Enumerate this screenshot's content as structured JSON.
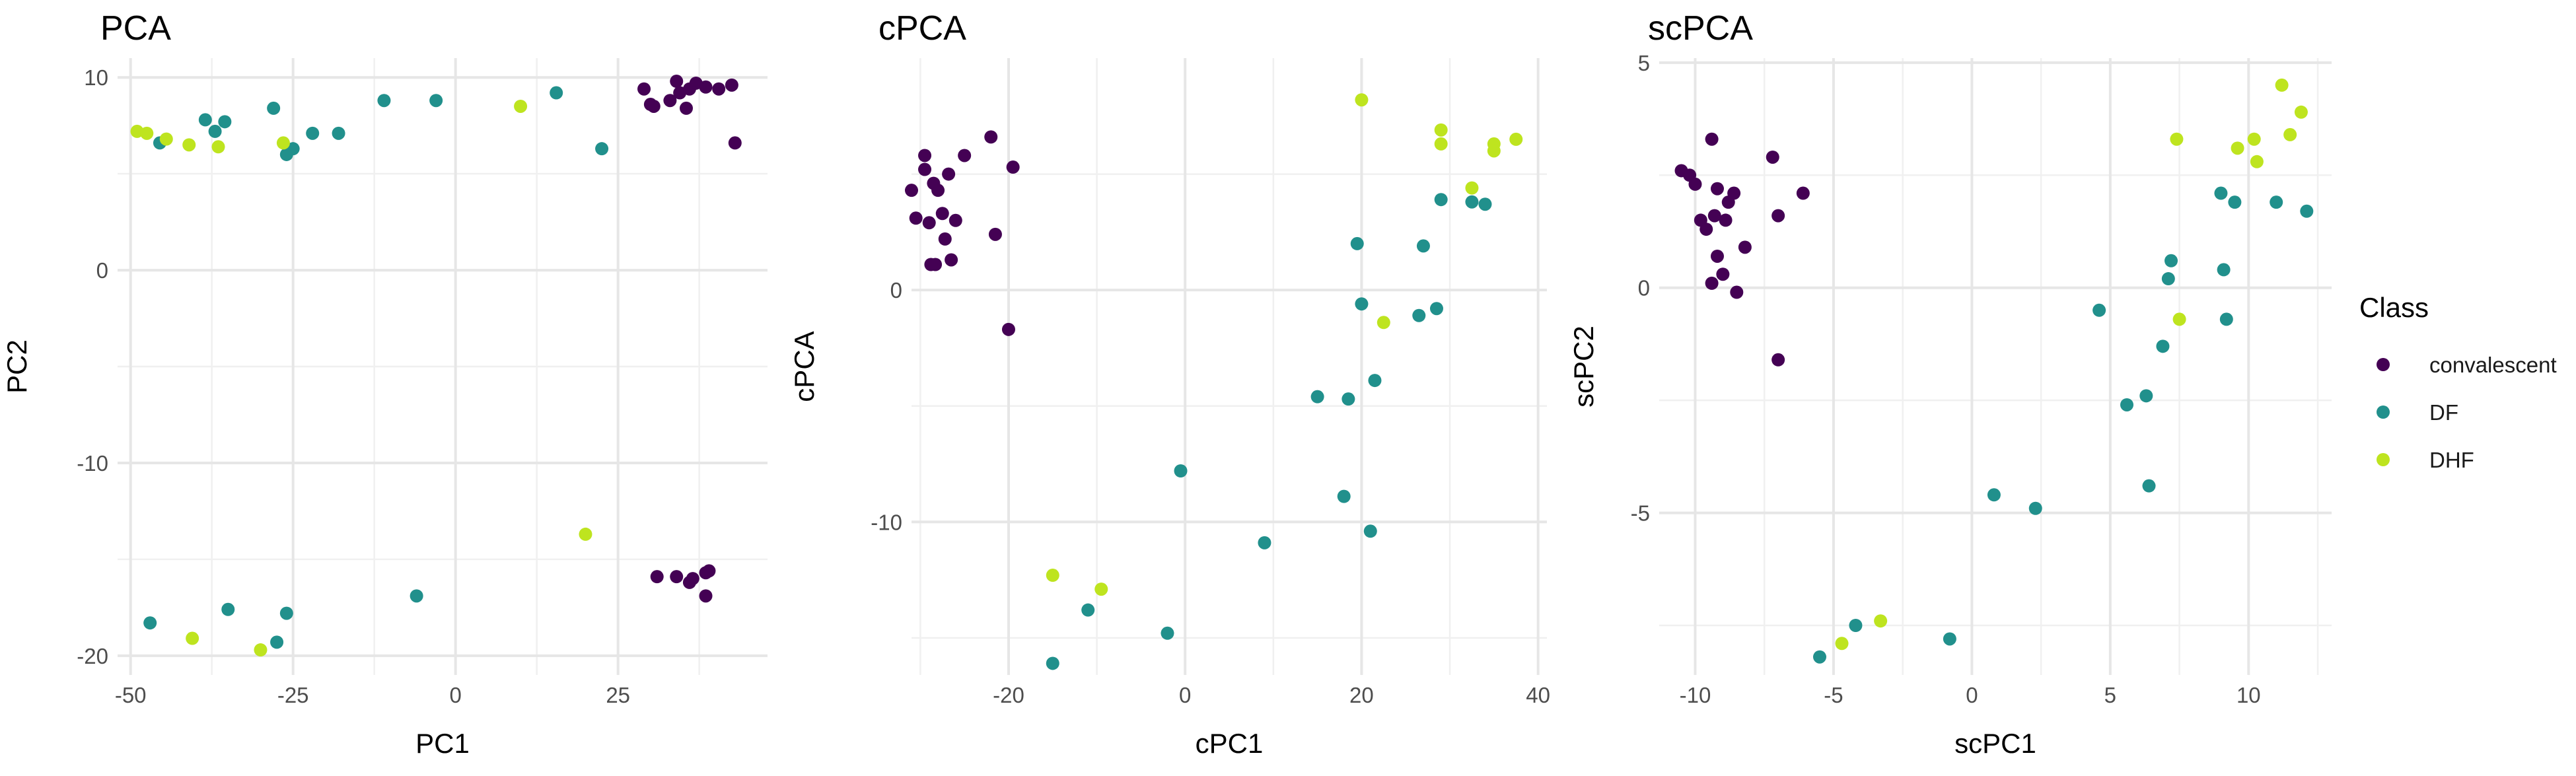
{
  "chart_data": [
    {
      "type": "scatter",
      "title": "PCA",
      "xlabel": "PC1",
      "ylabel": "PC2",
      "xlim": [
        -52,
        48
      ],
      "ylim": [
        -21,
        11
      ],
      "xticks": [
        -50,
        -25,
        0,
        25
      ],
      "yticks": [
        -20,
        -10,
        0,
        10
      ],
      "grid": true,
      "series": [
        {
          "name": "convalescent",
          "color": "#440154",
          "points": [
            [
              29,
              9.4
            ],
            [
              30,
              8.6
            ],
            [
              30.5,
              8.5
            ],
            [
              33,
              8.8
            ],
            [
              34,
              9.8
            ],
            [
              34.5,
              9.2
            ],
            [
              35.5,
              8.4
            ],
            [
              36,
              9.4
            ],
            [
              37,
              9.7
            ],
            [
              38.5,
              9.5
            ],
            [
              40.5,
              9.4
            ],
            [
              42.5,
              9.6
            ],
            [
              43,
              6.6
            ],
            [
              31,
              -15.9
            ],
            [
              34,
              -15.9
            ],
            [
              36,
              -16.2
            ],
            [
              36.5,
              -16
            ],
            [
              38.5,
              -15.7
            ],
            [
              39,
              -15.6
            ],
            [
              38.5,
              -16.9
            ]
          ]
        },
        {
          "name": "DF",
          "color": "#21908C",
          "points": [
            [
              -45.5,
              6.6
            ],
            [
              -38.5,
              7.8
            ],
            [
              -37,
              7.2
            ],
            [
              -35.5,
              7.7
            ],
            [
              -28,
              8.4
            ],
            [
              -26,
              6.0
            ],
            [
              -25,
              6.3
            ],
            [
              -22,
              7.1
            ],
            [
              -18,
              7.1
            ],
            [
              -11,
              8.8
            ],
            [
              -3,
              8.8
            ],
            [
              15.5,
              9.2
            ],
            [
              22.5,
              6.3
            ],
            [
              -47,
              -18.3
            ],
            [
              -35,
              -17.6
            ],
            [
              -27.5,
              -19.3
            ],
            [
              -26,
              -17.8
            ],
            [
              -6,
              -16.9
            ]
          ]
        },
        {
          "name": "DHF",
          "color": "#BEE41F",
          "points": [
            [
              -49,
              7.2
            ],
            [
              -47.5,
              7.1
            ],
            [
              -44.5,
              6.8
            ],
            [
              -41,
              6.5
            ],
            [
              -36.5,
              6.4
            ],
            [
              -26.5,
              6.6
            ],
            [
              10,
              8.5
            ],
            [
              20,
              -13.7
            ],
            [
              -40.5,
              -19.1
            ],
            [
              -30,
              -19.7
            ]
          ]
        }
      ]
    },
    {
      "type": "scatter",
      "title": "cPCA",
      "xlabel": "cPC1",
      "ylabel": "cPCA",
      "xlim": [
        -31,
        41
      ],
      "ylim": [
        -16.6,
        10
      ],
      "xticks": [
        -20,
        0,
        20,
        40
      ],
      "yticks": [
        -10,
        0
      ],
      "grid": true,
      "series": [
        {
          "name": "convalescent",
          "color": "#440154",
          "points": [
            [
              -31,
              4.3
            ],
            [
              -30.5,
              3.1
            ],
            [
              -29.5,
              5.8
            ],
            [
              -29.5,
              5.2
            ],
            [
              -29,
              2.9
            ],
            [
              -28.8,
              1.1
            ],
            [
              -28.5,
              4.6
            ],
            [
              -28.3,
              1.1
            ],
            [
              -28,
              4.3
            ],
            [
              -27.5,
              3.3
            ],
            [
              -27.2,
              2.2
            ],
            [
              -26.8,
              5.0
            ],
            [
              -26.5,
              1.3
            ],
            [
              -26,
              3.0
            ],
            [
              -25,
              5.8
            ],
            [
              -22,
              6.6
            ],
            [
              -21.5,
              2.4
            ],
            [
              -19.5,
              5.3
            ],
            [
              -20,
              -1.7
            ]
          ]
        },
        {
          "name": "DF",
          "color": "#21908C",
          "points": [
            [
              -15,
              -16.1
            ],
            [
              -11,
              -13.8
            ],
            [
              -2,
              -14.8
            ],
            [
              -0.5,
              -7.8
            ],
            [
              9,
              -10.9
            ],
            [
              15,
              -4.6
            ],
            [
              18,
              -8.9
            ],
            [
              18.5,
              -4.7
            ],
            [
              19.5,
              2.0
            ],
            [
              20,
              -0.6
            ],
            [
              21,
              -10.4
            ],
            [
              21.5,
              -3.9
            ],
            [
              26.5,
              -1.1
            ],
            [
              27,
              1.9
            ],
            [
              28.5,
              -0.8
            ],
            [
              29,
              3.9
            ],
            [
              32.5,
              3.8
            ],
            [
              34,
              3.7
            ]
          ]
        },
        {
          "name": "DHF",
          "color": "#BEE41F",
          "points": [
            [
              -15,
              -12.3
            ],
            [
              -9.5,
              -12.9
            ],
            [
              20,
              8.2
            ],
            [
              22.5,
              -1.4
            ],
            [
              29,
              6.9
            ],
            [
              29,
              6.3
            ],
            [
              32.5,
              4.4
            ],
            [
              35,
              6.3
            ],
            [
              35,
              6.0
            ],
            [
              37.5,
              6.5
            ]
          ]
        }
      ]
    },
    {
      "type": "scatter",
      "title": "scPCA",
      "xlabel": "scPC1",
      "ylabel": "scPC2",
      "xlim": [
        -11.3,
        13
      ],
      "ylim": [
        -8.6,
        5.1
      ],
      "xticks": [
        -10,
        -5,
        0,
        5,
        10
      ],
      "yticks": [
        -5,
        0,
        5
      ],
      "grid": true,
      "series": [
        {
          "name": "convalescent",
          "color": "#440154",
          "points": [
            [
              -10.5,
              2.6
            ],
            [
              -10.2,
              2.5
            ],
            [
              -10,
              2.3
            ],
            [
              -9.8,
              1.5
            ],
            [
              -9.6,
              1.3
            ],
            [
              -9.4,
              3.3
            ],
            [
              -9.4,
              0.1
            ],
            [
              -9.3,
              1.6
            ],
            [
              -9.2,
              0.7
            ],
            [
              -9.2,
              2.2
            ],
            [
              -9,
              0.3
            ],
            [
              -8.9,
              1.5
            ],
            [
              -8.8,
              1.9
            ],
            [
              -8.6,
              2.1
            ],
            [
              -8.5,
              -0.1
            ],
            [
              -8.2,
              0.9
            ],
            [
              -7.2,
              2.9
            ],
            [
              -7,
              1.6
            ],
            [
              -7,
              -1.6
            ],
            [
              -6.1,
              2.1
            ]
          ]
        },
        {
          "name": "DF",
          "color": "#21908C",
          "points": [
            [
              -5.5,
              -8.2
            ],
            [
              -4.2,
              -7.5
            ],
            [
              -0.8,
              -7.8
            ],
            [
              0.8,
              -4.6
            ],
            [
              2.3,
              -4.9
            ],
            [
              4.6,
              -0.5
            ],
            [
              5.6,
              -2.6
            ],
            [
              6.3,
              -2.4
            ],
            [
              6.4,
              -4.4
            ],
            [
              6.9,
              -1.3
            ],
            [
              7.1,
              0.2
            ],
            [
              7.2,
              0.6
            ],
            [
              9,
              2.1
            ],
            [
              9.1,
              0.4
            ],
            [
              9.2,
              -0.7
            ],
            [
              9.5,
              1.9
            ],
            [
              11,
              1.9
            ],
            [
              12.1,
              1.7
            ]
          ]
        },
        {
          "name": "DHF",
          "color": "#BEE41F",
          "points": [
            [
              -4.7,
              -7.9
            ],
            [
              -3.3,
              -7.4
            ],
            [
              7.4,
              3.3
            ],
            [
              7.5,
              -0.7
            ],
            [
              9.6,
              3.1
            ],
            [
              10.2,
              3.3
            ],
            [
              10.3,
              2.8
            ],
            [
              11.2,
              4.5
            ],
            [
              11.5,
              3.4
            ],
            [
              11.9,
              3.9
            ]
          ]
        }
      ]
    }
  ],
  "legend": {
    "title": "Class",
    "position": "right",
    "items": [
      {
        "label": "convalescent",
        "color": "#440154"
      },
      {
        "label": "DF",
        "color": "#21908C"
      },
      {
        "label": "DHF",
        "color": "#BEE41F"
      }
    ]
  }
}
